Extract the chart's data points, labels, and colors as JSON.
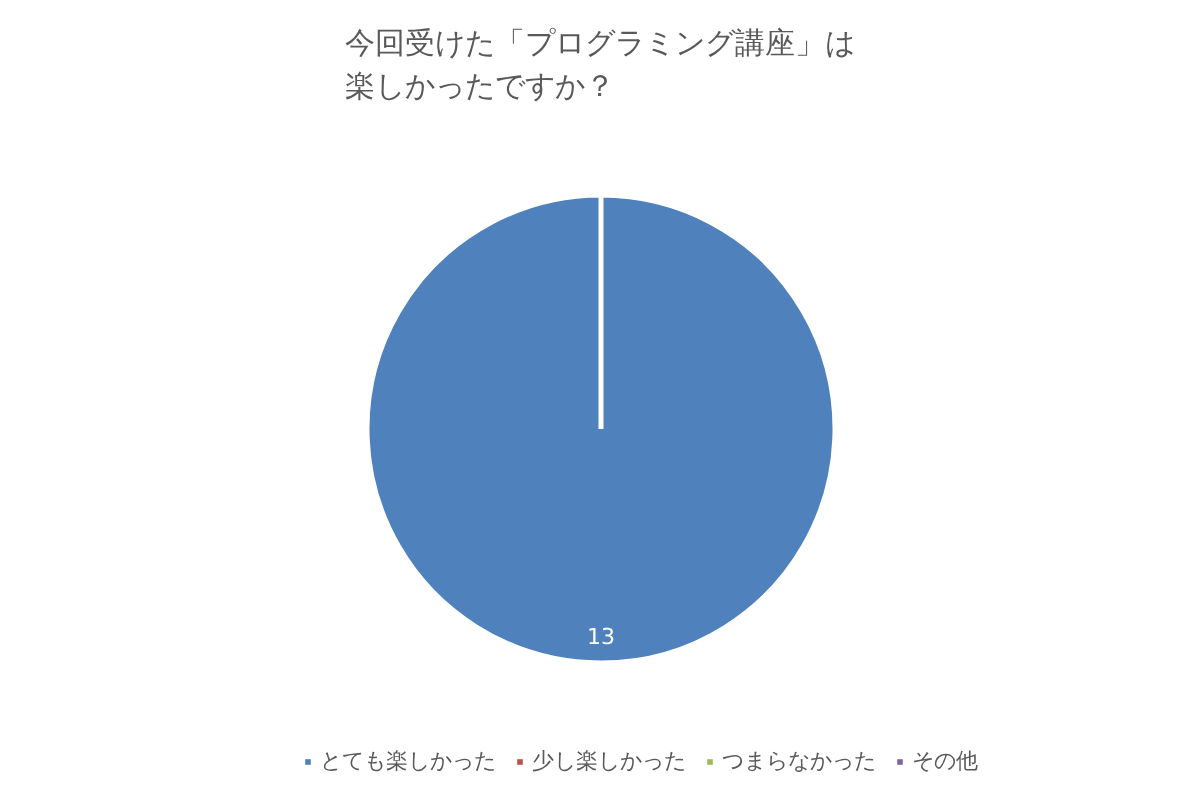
{
  "chart_data": {
    "type": "pie",
    "title": "今回受けた「プログラミング講座」は楽しかったですか？",
    "categories": [
      "とても楽しかった",
      "少し楽しかった",
      "つまらなかった",
      "その他"
    ],
    "values": [
      13,
      0,
      0,
      0
    ],
    "colors": [
      "#4f81bd",
      "#c0504d",
      "#9bbb59",
      "#8064a2"
    ],
    "value_labels": [
      "13",
      null,
      null,
      null
    ],
    "legend": "bottom"
  }
}
